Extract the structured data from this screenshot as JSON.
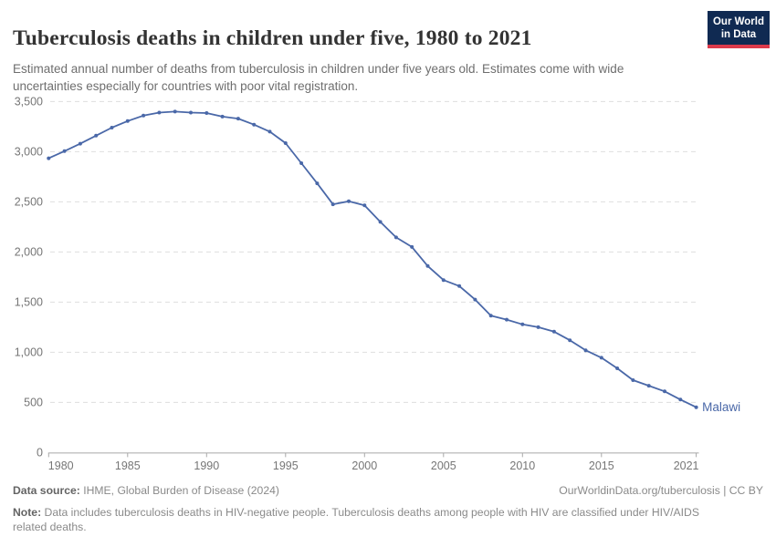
{
  "header": {
    "title": "Tuberculosis deaths in children under five, 1980 to 2021",
    "subtitle": "Estimated annual number of deaths from tuberculosis in children under five years old. Estimates come with wide uncertainties especially for countries with poor vital registration.",
    "logo": {
      "line1": "Our World",
      "line2": "in Data",
      "bg_color": "#102a52",
      "accent_color": "#dc3a4b"
    }
  },
  "chart_data": {
    "type": "line",
    "title": "Tuberculosis deaths in children under five, 1980 to 2021",
    "xlabel": "",
    "ylabel": "",
    "xlim": [
      1980,
      2021
    ],
    "ylim": [
      0,
      3500
    ],
    "grid": "horizontal-dashed",
    "legend_position": "end-of-line-label",
    "x_ticks": [
      1980,
      1985,
      1990,
      1995,
      2000,
      2005,
      2010,
      2015,
      2021
    ],
    "y_ticks": [
      0,
      500,
      1000,
      1500,
      2000,
      2500,
      3000,
      3500
    ],
    "y_tick_labels": [
      "0",
      "500",
      "1,000",
      "1,500",
      "2,000",
      "2,500",
      "3,000",
      "3,500"
    ],
    "series": [
      {
        "name": "Malawi",
        "color": "#4a68a8",
        "x": [
          1980,
          1981,
          1982,
          1983,
          1984,
          1985,
          1986,
          1987,
          1988,
          1989,
          1990,
          1991,
          1992,
          1993,
          1994,
          1995,
          1996,
          1997,
          1998,
          1999,
          2000,
          2001,
          2002,
          2003,
          2004,
          2005,
          2006,
          2007,
          2008,
          2009,
          2010,
          2011,
          2012,
          2013,
          2014,
          2015,
          2016,
          2017,
          2018,
          2019,
          2020,
          2021
        ],
        "values": [
          2935,
          3005,
          3080,
          3160,
          3240,
          3305,
          3360,
          3390,
          3400,
          3390,
          3385,
          3350,
          3330,
          3270,
          3200,
          3085,
          2885,
          2685,
          2475,
          2505,
          2465,
          2300,
          2145,
          2050,
          1860,
          1720,
          1660,
          1525,
          1365,
          1325,
          1278,
          1250,
          1205,
          1120,
          1020,
          945,
          840,
          722,
          666,
          610,
          528,
          452
        ]
      }
    ],
    "end_label": "Malawi",
    "colors": {
      "gridline": "#dedede",
      "axis": "#a8a8a8",
      "tick_label": "#767676"
    }
  },
  "footer": {
    "datasource_label": "Data source:",
    "datasource_text": " IHME, Global Burden of Disease (2024)",
    "credit": "OurWorldinData.org/tuberculosis | CC BY",
    "note_label": "Note:",
    "note_text": " Data includes tuberculosis deaths in HIV-negative people. Tuberculosis deaths among people with HIV are classified under HIV/AIDS related deaths."
  }
}
